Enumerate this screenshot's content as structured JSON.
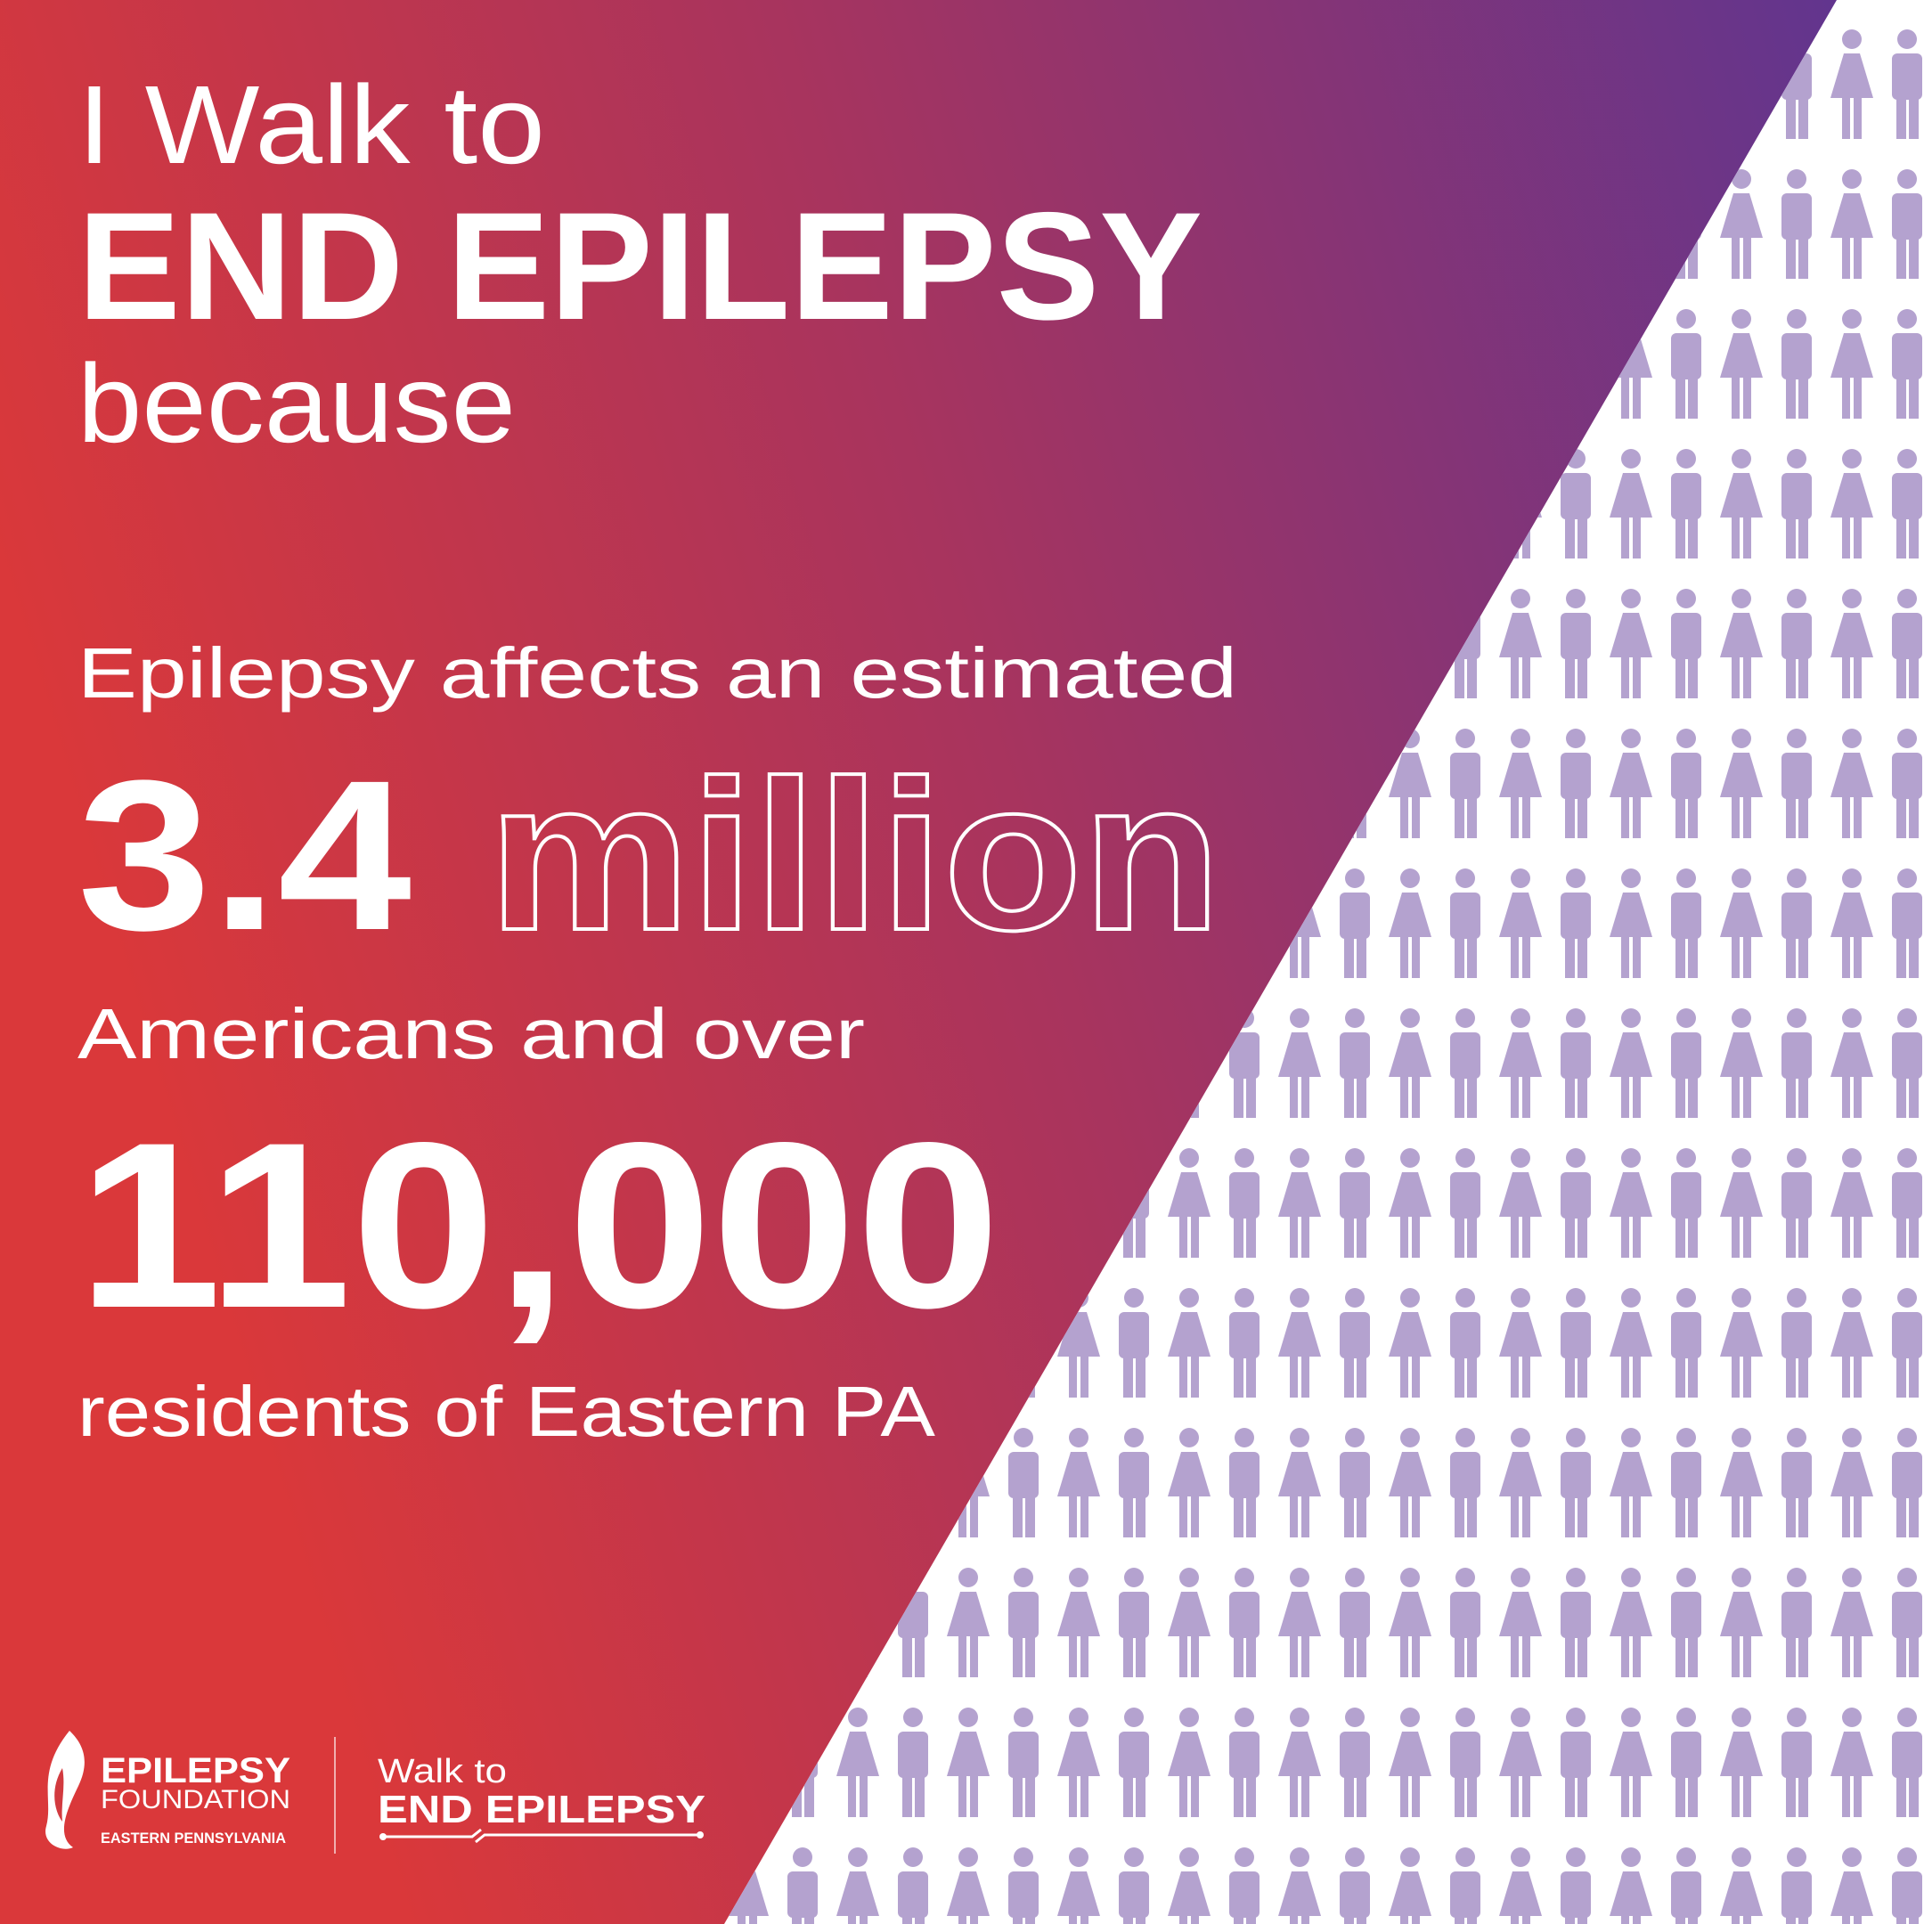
{
  "header": {
    "line1": "I Walk to",
    "line2": "END EPILEPSY",
    "line3": "because"
  },
  "stats": {
    "intro": "Epilepsy affects an estimated",
    "national_number": "3.4",
    "national_unit": "million",
    "middle": "Americans and over",
    "regional_number": "110,000",
    "outro": "residents of Eastern PA"
  },
  "logos": {
    "foundation_name": "EPILEPSY",
    "foundation_sub": "FOUNDATION",
    "foundation_region": "EASTERN PENNSYLVANIA",
    "walk_line1": "Walk to",
    "walk_line2": "END EPILEPSY"
  }
}
